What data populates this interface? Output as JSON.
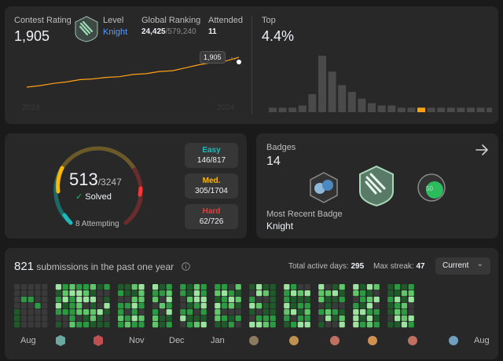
{
  "rating": {
    "label": "Contest Rating",
    "value": "1,905",
    "level_label": "Level",
    "level_value": "Knight",
    "global_label": "Global Ranking",
    "global_rank": "24,425",
    "global_total": "/579,240",
    "attended_label": "Attended",
    "attended_value": "11",
    "tooltip": "1,905",
    "year_start": "2023",
    "year_end": "2024",
    "top_label": "Top",
    "top_value": "4.4%",
    "histogram": [
      2,
      2,
      2,
      3,
      8,
      25,
      18,
      12,
      9,
      6,
      4,
      3,
      3,
      2,
      2,
      2,
      2,
      2,
      2,
      2,
      2,
      2,
      2
    ],
    "highlight_index": 15,
    "line": [
      0,
      2,
      5,
      7,
      10,
      11,
      13,
      14,
      17,
      18,
      21,
      22,
      26,
      30,
      33,
      35,
      40
    ]
  },
  "solved": {
    "count": "513",
    "total": "/3247",
    "solved_label": "Solved",
    "attempting": "8 Attempting",
    "easy_label": "Easy",
    "easy_value": "146/817",
    "medium_label": "Med.",
    "medium_value": "305/1704",
    "hard_label": "Hard",
    "hard_value": "62/726"
  },
  "badges": {
    "label": "Badges",
    "count": "14",
    "recent_label": "Most Recent Badge",
    "recent_value": "Knight"
  },
  "submissions": {
    "count": "821",
    "label": "submissions in the past one year",
    "active_label": "Total active days:",
    "active_value": "295",
    "streak_label": "Max streak:",
    "streak_value": "47",
    "dropdown": "Current",
    "months": [
      "Aug",
      "Nov",
      "Dec",
      "Jan",
      "Aug"
    ]
  },
  "colors": {
    "accent": "#ffa116",
    "easy": "#1cbaba",
    "medium": "#ffb700",
    "hard": "#f63737",
    "knight": "#5b9bf8",
    "heat_empty": "#3a3a3a",
    "heat_1": "#1e5a2a",
    "heat_2": "#2c9a42",
    "heat_3": "#60c66a",
    "heat_4": "#9de3a0"
  }
}
